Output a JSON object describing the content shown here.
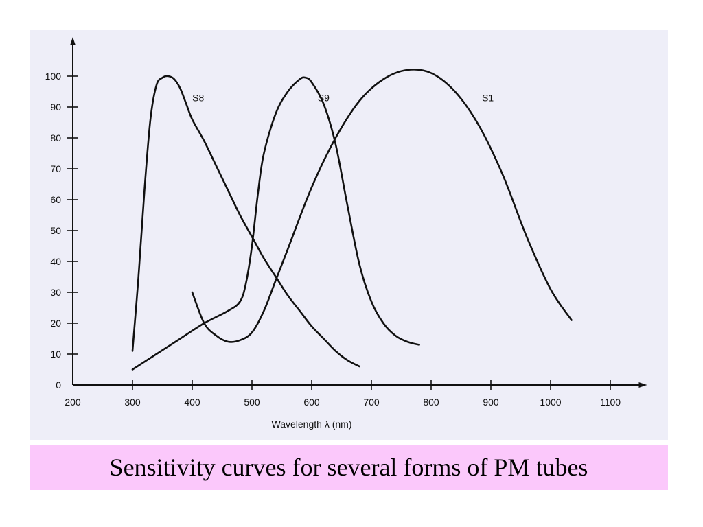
{
  "caption": "Sensitivity curves for several forms of PM tubes",
  "colors": {
    "panel_background": "#eeeef8",
    "caption_background": "#fbc8fb",
    "ink": "#111111"
  },
  "chart_data": {
    "type": "line",
    "title": "",
    "xlabel": "Wavelength λ (nm)",
    "ylabel": "",
    "xlim": [
      200,
      1150
    ],
    "ylim": [
      0,
      110
    ],
    "x_ticks": [
      200,
      300,
      400,
      500,
      600,
      700,
      800,
      900,
      1000,
      1100
    ],
    "y_ticks": [
      0,
      10,
      20,
      30,
      40,
      50,
      60,
      70,
      80,
      90,
      100
    ],
    "grid": false,
    "legend": "labels placed next to curves",
    "series": [
      {
        "name": "S8",
        "label_at": [
          410,
          93
        ],
        "x": [
          300,
          310,
          320,
          330,
          340,
          350,
          360,
          370,
          380,
          390,
          400,
          420,
          440,
          460,
          480,
          500,
          520,
          540,
          560,
          580,
          600,
          620,
          640,
          660,
          680
        ],
        "y": [
          11,
          35,
          63,
          86,
          97,
          99.5,
          100,
          99,
          96,
          91,
          86,
          79,
          71,
          63,
          55,
          48,
          41,
          35,
          29,
          24,
          19,
          15,
          11,
          8,
          6
        ]
      },
      {
        "name": "S9",
        "label_at": [
          620,
          93
        ],
        "x": [
          300,
          340,
          380,
          420,
          460,
          480,
          490,
          500,
          510,
          520,
          540,
          560,
          580,
          590,
          600,
          620,
          640,
          660,
          680,
          700,
          720,
          740,
          760,
          780
        ],
        "y": [
          5,
          10,
          15,
          20,
          24,
          27,
          33,
          45,
          62,
          75,
          88,
          95,
          99,
          99.5,
          98,
          91,
          78,
          58,
          39,
          27,
          20,
          16,
          14,
          13
        ]
      },
      {
        "name": "S1",
        "label_at": [
          895,
          93
        ],
        "x": [
          400,
          420,
          440,
          460,
          480,
          500,
          520,
          540,
          560,
          600,
          640,
          680,
          720,
          760,
          800,
          840,
          880,
          920,
          960,
          1000,
          1035
        ],
        "y": [
          30,
          20,
          16,
          14,
          14.5,
          17,
          24,
          34,
          44,
          64,
          80,
          92,
          99,
          102,
          101,
          95,
          84,
          68,
          48,
          31,
          21
        ]
      }
    ]
  }
}
